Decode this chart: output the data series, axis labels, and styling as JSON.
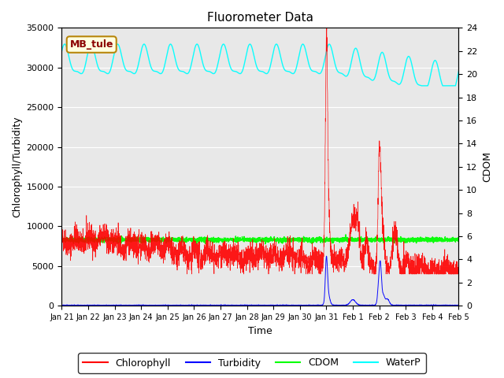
{
  "title": "Fluorometer Data",
  "xlabel": "Time",
  "ylabel_left": "Chlorophyll/Turbidity",
  "ylabel_right": "CDOM",
  "annotation": "MB_tule",
  "ylim_left": [
    0,
    35000
  ],
  "ylim_right": [
    0,
    24
  ],
  "bg_color": "#e8e8e8",
  "legend_entries": [
    "Chlorophyll",
    "Turbidity",
    "CDOM",
    "WaterP"
  ],
  "legend_colors": [
    "red",
    "blue",
    "lime",
    "cyan"
  ],
  "xtick_labels": [
    "Jan 21",
    "Jan 22",
    "Jan 23",
    "Jan 24",
    "Jan 25",
    "Jan 26",
    "Jan 27",
    "Jan 28",
    "Jan 29",
    "Jan 30",
    "Jan 31",
    "Feb 1",
    "Feb 2",
    "Feb 3",
    "Feb 4",
    "Feb 5"
  ],
  "n_points": 3360,
  "seed": 42
}
